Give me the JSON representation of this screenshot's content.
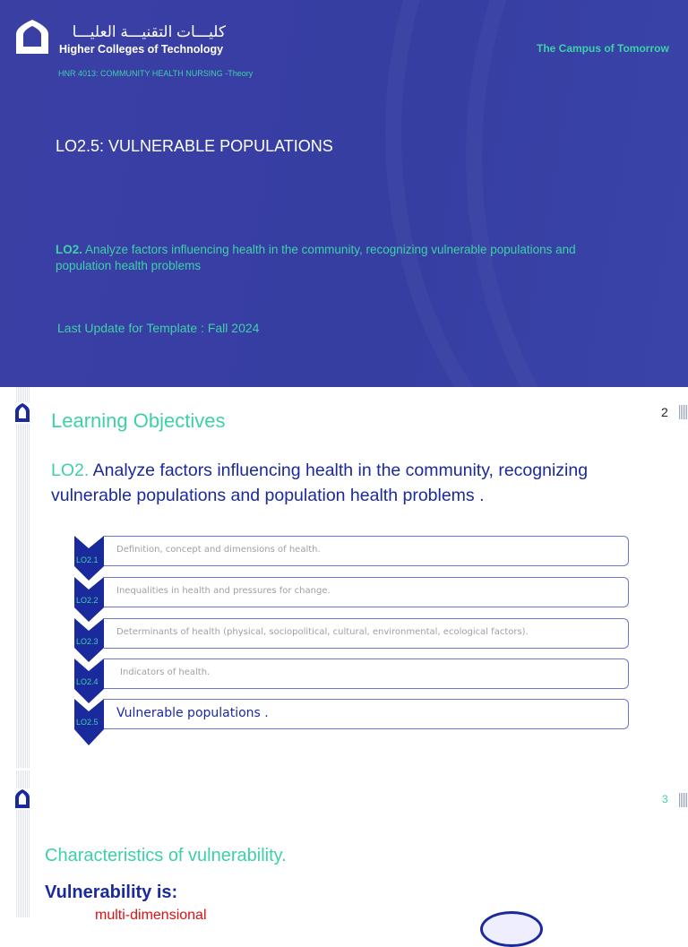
{
  "slide1": {
    "logo_arabic": "كليـــات التقنيـــة العليـــا",
    "logo_english": "Higher Colleges of Technology",
    "tagline": "The Campus of Tomorrow",
    "course": "HNR 4013: COMMUNITY HEALTH NURSING -Theory",
    "title": "LO2.5: VULNERABLE POPULATIONS",
    "lo_prefix": "LO2.",
    "lo_text": "Analyze factors influencing health in the community, recognizing vulnerable populations and population health problems",
    "update": "Last Update for Template : Fall 2024"
  },
  "slide2": {
    "page": "2",
    "title": "Learning Objectives",
    "lo_prefix": "LO2.",
    "lo_text": "Analyze factors influencing health in the community, recognizing vulnerable populations and population health problems .",
    "steps": [
      {
        "label": "LO2.1",
        "text": "Definition, concept and dimensions of health."
      },
      {
        "label": "LO2.2",
        "text": "Inequalities in health and pressures for change."
      },
      {
        "label": "LO2.3",
        "text": "Determinants of health (physical, sociopolitical, cultural, environmental, ecological factors)."
      },
      {
        "label": "LO2.4",
        "text": "Indicators of health."
      },
      {
        "label": "LO2.5",
        "text": "Vulnerable populations ."
      }
    ]
  },
  "slide3": {
    "page": "3",
    "title": "Characteristics of vulnerability.",
    "subtitle": "Vulnerability is:",
    "bullet1": "multi-dimensional"
  },
  "colors": {
    "brand_blue": "#363ea2",
    "accent_green": "#3ed0a8",
    "text_blue": "#1a2a9c",
    "bullet_red": "#e01010"
  }
}
